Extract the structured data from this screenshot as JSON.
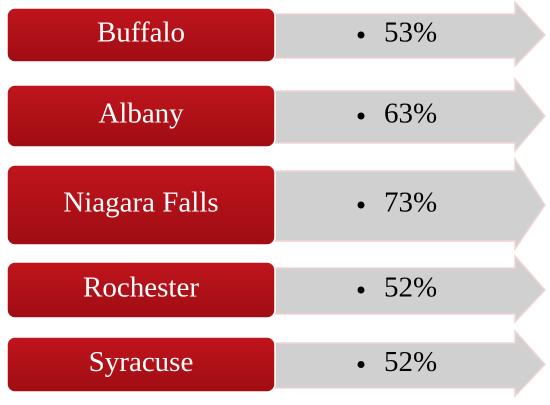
{
  "rows": [
    {
      "label": "Buffalo",
      "value": "53%"
    },
    {
      "label": "Albany",
      "value": "63%"
    },
    {
      "label": "Niagara Falls",
      "value": "73%"
    },
    {
      "label": "Rochester",
      "value": "52%"
    },
    {
      "label": "Syracuse",
      "value": "52%"
    }
  ]
}
